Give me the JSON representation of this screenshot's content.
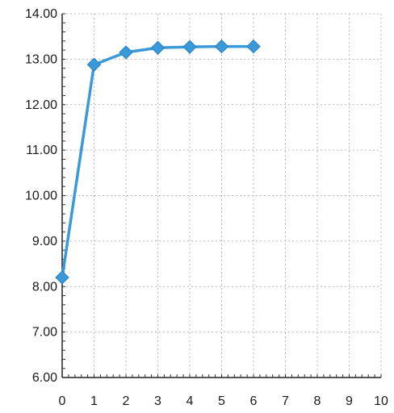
{
  "chart_data": {
    "type": "line",
    "title": "",
    "xlabel": "",
    "ylabel": "",
    "xlim": [
      0,
      10
    ],
    "ylim": [
      6,
      14
    ],
    "grid": true,
    "legend": "none",
    "x_ticks": [
      "0",
      "1",
      "2",
      "3",
      "4",
      "5",
      "6",
      "7",
      "8",
      "9",
      "10"
    ],
    "y_ticks": [
      "6.00",
      "7.00",
      "8.00",
      "9.00",
      "10.00",
      "11.00",
      "12.00",
      "13.00",
      "14.00"
    ],
    "series": [
      {
        "x": [
          0,
          1,
          2,
          3,
          4,
          5,
          6
        ],
        "y": [
          8.2,
          12.88,
          13.15,
          13.25,
          13.27,
          13.28,
          13.28
        ],
        "color": "#3a9ad9",
        "marker": "diamond"
      }
    ]
  }
}
